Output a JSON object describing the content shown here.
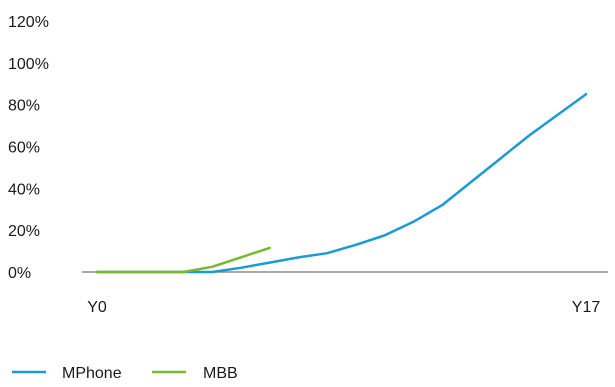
{
  "chart_data": {
    "type": "line",
    "x_tick_labels": [
      "Y0",
      "Y17"
    ],
    "x_range": [
      0,
      17
    ],
    "y_ticks": [
      0,
      20,
      40,
      60,
      80,
      100,
      120
    ],
    "y_tick_labels": [
      "0%",
      "20%",
      "40%",
      "60%",
      "80%",
      "100%",
      "120%"
    ],
    "ylim": [
      0,
      120
    ],
    "grid": false,
    "legend_position": "bottom-left",
    "series": [
      {
        "name": "MPhone",
        "color": "#1a9ad6",
        "x": [
          0,
          1,
          2,
          3,
          4,
          5,
          6,
          7,
          8,
          9,
          10,
          11,
          12,
          13,
          14,
          15,
          16,
          17
        ],
        "values": [
          0,
          0,
          0,
          0,
          0,
          2,
          4.5,
          7,
          9,
          13,
          17.5,
          24,
          32,
          43,
          54,
          65,
          75,
          85
        ]
      },
      {
        "name": "MBB",
        "color": "#7ab92c",
        "x": [
          0,
          1,
          2,
          3,
          4,
          5,
          6
        ],
        "values": [
          0,
          0,
          0,
          0,
          2.5,
          7,
          11.5
        ]
      }
    ]
  }
}
